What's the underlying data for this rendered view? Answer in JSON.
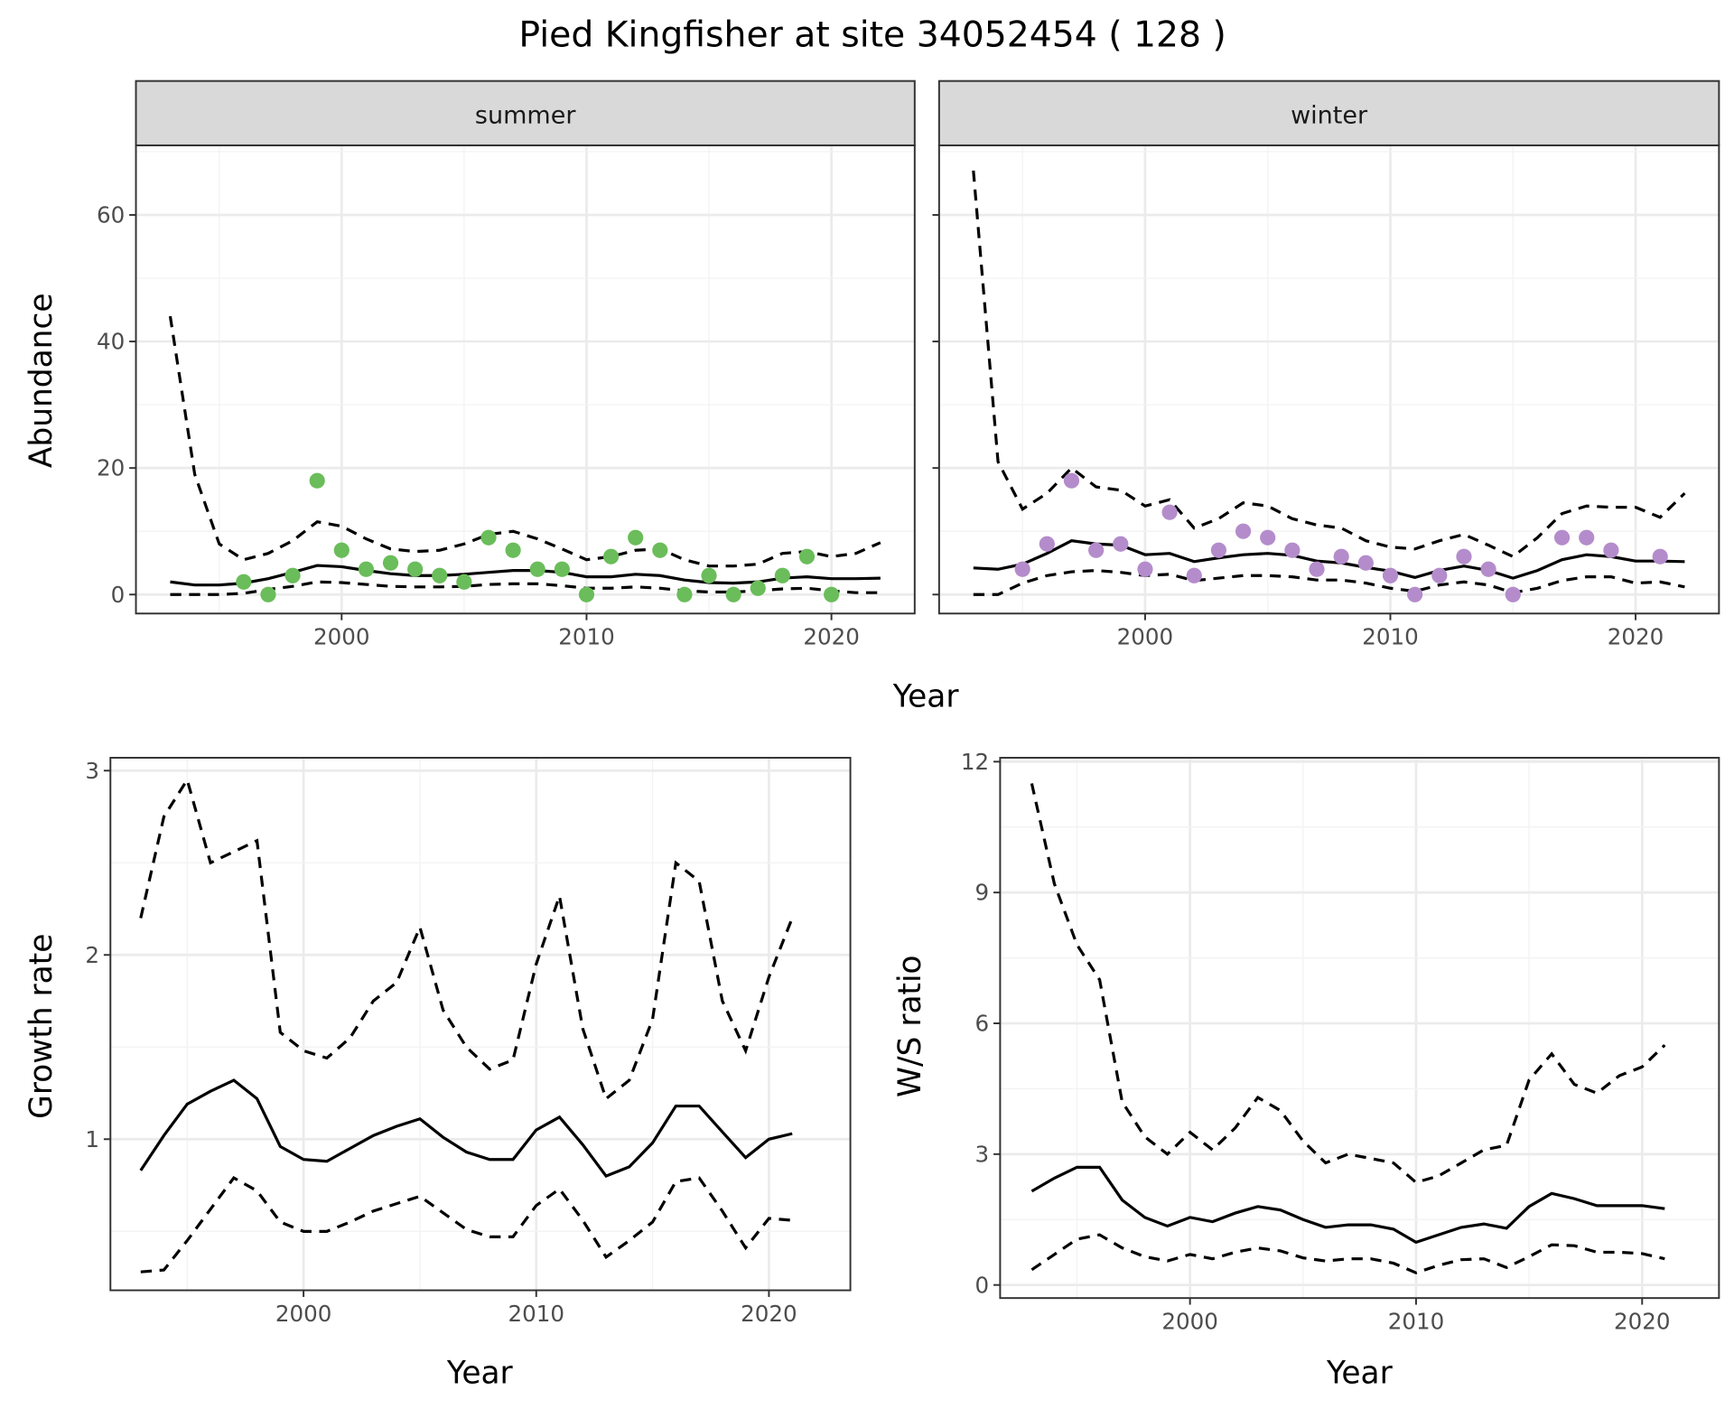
{
  "title": "Pied Kingfisher at site 34052454 ( 128 )",
  "colors": {
    "summer_points": "#6abd5a",
    "winter_points": "#b48ccb",
    "lines": "#000000",
    "strip_bg": "#d9d9d9"
  },
  "chart_data": [
    {
      "type": "line",
      "facet": "summer",
      "xlabel": "Year",
      "ylabel": "Abundance",
      "xlim": [
        1991.6,
        2023.4
      ],
      "ylim": [
        -3,
        71
      ],
      "xticks": [
        2000,
        2010,
        2020
      ],
      "yticks": [
        0,
        20,
        40,
        60
      ],
      "x": [
        1993,
        1994,
        1995,
        1996,
        1997,
        1998,
        1999,
        2000,
        2001,
        2002,
        2003,
        2004,
        2005,
        2006,
        2007,
        2008,
        2009,
        2010,
        2011,
        2012,
        2013,
        2014,
        2015,
        2016,
        2017,
        2018,
        2019,
        2020,
        2021,
        2022
      ],
      "mean": [
        2.0,
        1.5,
        1.5,
        1.8,
        2.5,
        3.5,
        4.6,
        4.4,
        3.8,
        3.3,
        3.0,
        3.0,
        3.2,
        3.5,
        3.8,
        3.8,
        3.5,
        2.8,
        2.8,
        3.2,
        3.0,
        2.3,
        1.9,
        1.8,
        2.0,
        2.6,
        2.8,
        2.5,
        2.5,
        2.6
      ],
      "upper": [
        44,
        19,
        8,
        5.5,
        6.5,
        8.5,
        11.5,
        10.8,
        8.8,
        7.2,
        6.8,
        7.0,
        8.0,
        9.5,
        10,
        8.8,
        7.2,
        5.5,
        6.0,
        7.0,
        7.2,
        5.5,
        4.5,
        4.5,
        4.8,
        6.5,
        6.8,
        6.0,
        6.5,
        8.2
      ],
      "lower": [
        0,
        0,
        0,
        0.2,
        0.8,
        1.3,
        2.0,
        1.9,
        1.6,
        1.3,
        1.2,
        1.2,
        1.3,
        1.6,
        1.7,
        1.7,
        1.4,
        1.0,
        1.0,
        1.2,
        1.0,
        0.6,
        0.4,
        0.4,
        0.6,
        0.9,
        1.0,
        0.6,
        0.3,
        0.3
      ],
      "points": {
        "x": [
          1996,
          1997,
          1998,
          1999,
          2000,
          2001,
          2002,
          2003,
          2004,
          2005,
          2006,
          2007,
          2008,
          2009,
          2010,
          2011,
          2012,
          2013,
          2014,
          2015,
          2016,
          2017,
          2018,
          2019,
          2020
        ],
        "y": [
          2,
          0,
          3,
          18,
          7,
          4,
          5,
          4,
          3,
          2,
          9,
          7,
          4,
          4,
          0,
          6,
          9,
          7,
          0,
          3,
          0,
          1,
          3,
          6,
          0
        ]
      }
    },
    {
      "type": "line",
      "facet": "winter",
      "xlabel": "Year",
      "ylabel": "Abundance",
      "xlim": [
        1991.6,
        2023.4
      ],
      "ylim": [
        -3,
        71
      ],
      "xticks": [
        2000,
        2010,
        2020
      ],
      "yticks": [
        0,
        20,
        40,
        60
      ],
      "x": [
        1993,
        1994,
        1995,
        1996,
        1997,
        1998,
        1999,
        2000,
        2001,
        2002,
        2003,
        2004,
        2005,
        2006,
        2007,
        2008,
        2009,
        2010,
        2011,
        2012,
        2013,
        2014,
        2015,
        2016,
        2017,
        2018,
        2019,
        2020,
        2021,
        2022
      ],
      "mean": [
        4.2,
        4.0,
        4.8,
        6.5,
        8.5,
        8.0,
        7.8,
        6.3,
        6.5,
        5.2,
        5.8,
        6.3,
        6.5,
        6.2,
        5.3,
        5.0,
        4.3,
        3.7,
        2.7,
        3.8,
        4.5,
        3.8,
        2.6,
        3.8,
        5.5,
        6.3,
        6.0,
        5.3,
        5.3,
        5.2
      ],
      "upper": [
        67,
        21,
        13.5,
        16,
        20,
        17,
        16.5,
        14,
        15,
        10.5,
        12,
        14.5,
        14,
        12,
        11,
        10.5,
        8.5,
        7.5,
        7.2,
        8.5,
        9.5,
        7.8,
        6,
        9,
        12.8,
        14,
        13.8,
        13.8,
        12.2,
        16
      ],
      "lower": [
        0,
        0,
        1.8,
        3,
        3.6,
        3.8,
        3.5,
        3.0,
        3.2,
        2.2,
        2.6,
        3.0,
        3.0,
        2.8,
        2.3,
        2.3,
        1.8,
        1.0,
        0.5,
        1.5,
        2.0,
        1.5,
        0.3,
        1.0,
        2.2,
        2.8,
        2.8,
        1.8,
        2.0,
        1.2
      ],
      "points": {
        "x": [
          1995,
          1996,
          1997,
          1998,
          1999,
          2000,
          2001,
          2002,
          2003,
          2004,
          2005,
          2006,
          2007,
          2008,
          2009,
          2010,
          2011,
          2012,
          2013,
          2014,
          2015,
          2017,
          2018,
          2019,
          2021
        ],
        "y": [
          4,
          8,
          18,
          7,
          8,
          4,
          13,
          3,
          7,
          10,
          9,
          7,
          4,
          6,
          5,
          3,
          0,
          3,
          6,
          4,
          0,
          9,
          9,
          7,
          6
        ]
      }
    },
    {
      "type": "line",
      "xlabel": "Year",
      "ylabel": "Growth rate",
      "xlim": [
        1991.7,
        2023.5
      ],
      "ylim": [
        0.18,
        3.07
      ],
      "xticks": [
        2000,
        2010,
        2020
      ],
      "yticks": [
        1,
        2,
        3
      ],
      "x": [
        1993,
        1994,
        1995,
        1996,
        1997,
        1998,
        1999,
        2000,
        2001,
        2002,
        2003,
        2004,
        2005,
        2006,
        2007,
        2008,
        2009,
        2010,
        2011,
        2012,
        2013,
        2014,
        2015,
        2016,
        2017,
        2018,
        2019,
        2020,
        2021
      ],
      "mean": [
        0.83,
        1.02,
        1.19,
        1.26,
        1.32,
        1.22,
        0.96,
        0.89,
        0.88,
        0.95,
        1.02,
        1.07,
        1.11,
        1.01,
        0.93,
        0.89,
        0.89,
        1.05,
        1.12,
        0.97,
        0.8,
        0.85,
        0.98,
        1.18,
        1.18,
        1.04,
        0.9,
        1.0,
        1.03
      ],
      "upper": [
        2.2,
        2.75,
        2.95,
        2.5,
        2.56,
        2.62,
        1.58,
        1.48,
        1.44,
        1.55,
        1.75,
        1.85,
        2.15,
        1.7,
        1.5,
        1.38,
        1.43,
        1.95,
        2.32,
        1.6,
        1.22,
        1.32,
        1.65,
        2.5,
        2.4,
        1.75,
        1.48,
        1.88,
        2.2
      ],
      "lower": [
        0.28,
        0.29,
        0.45,
        0.62,
        0.79,
        0.72,
        0.55,
        0.5,
        0.5,
        0.55,
        0.61,
        0.65,
        0.69,
        0.6,
        0.51,
        0.47,
        0.47,
        0.64,
        0.73,
        0.56,
        0.36,
        0.45,
        0.55,
        0.77,
        0.79,
        0.61,
        0.41,
        0.57,
        0.56
      ]
    },
    {
      "type": "line",
      "xlabel": "Year",
      "ylabel": "W/S ratio",
      "xlim": [
        1991.6,
        2023.4
      ],
      "ylim": [
        -0.3,
        12.09
      ],
      "xticks": [
        2000,
        2010,
        2020
      ],
      "yticks": [
        0,
        3,
        6,
        9,
        12
      ],
      "x": [
        1993,
        1994,
        1995,
        1996,
        1997,
        1998,
        1999,
        2000,
        2001,
        2002,
        2003,
        2004,
        2005,
        2006,
        2007,
        2008,
        2009,
        2010,
        2011,
        2012,
        2013,
        2014,
        2015,
        2016,
        2017,
        2018,
        2019,
        2020,
        2021
      ],
      "mean": [
        2.15,
        2.45,
        2.7,
        2.7,
        1.95,
        1.55,
        1.35,
        1.55,
        1.45,
        1.65,
        1.8,
        1.72,
        1.5,
        1.32,
        1.38,
        1.38,
        1.28,
        0.98,
        1.15,
        1.32,
        1.4,
        1.3,
        1.8,
        2.1,
        1.98,
        1.82,
        1.82,
        1.82,
        1.75
      ],
      "upper": [
        11.5,
        9.2,
        7.8,
        7.0,
        4.2,
        3.4,
        3.0,
        3.5,
        3.1,
        3.6,
        4.3,
        4.0,
        3.3,
        2.8,
        3.0,
        2.9,
        2.8,
        2.35,
        2.5,
        2.8,
        3.1,
        3.2,
        4.7,
        5.3,
        4.6,
        4.4,
        4.8,
        5.0,
        5.5
      ],
      "lower": [
        0.35,
        0.7,
        1.05,
        1.15,
        0.85,
        0.65,
        0.55,
        0.7,
        0.6,
        0.75,
        0.85,
        0.78,
        0.62,
        0.55,
        0.6,
        0.6,
        0.5,
        0.28,
        0.45,
        0.58,
        0.6,
        0.4,
        0.65,
        0.92,
        0.9,
        0.75,
        0.75,
        0.72,
        0.6
      ]
    }
  ]
}
